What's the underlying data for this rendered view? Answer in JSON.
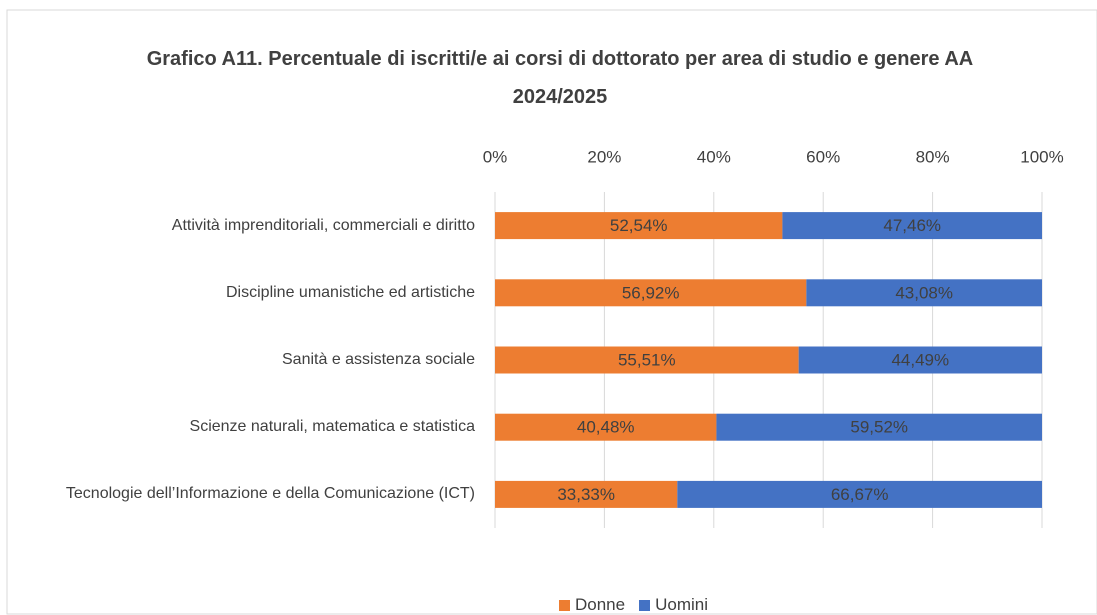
{
  "chart_data": {
    "type": "bar",
    "orientation": "horizontal",
    "stacked": true,
    "title": "Grafico A11. Percentuale di iscritti/e ai corsi di dottorato per area di studio e genere AA 2024/2025",
    "categories": [
      "Attività imprenditoriali, commerciali e diritto",
      "Discipline umanistiche ed artistiche",
      "Sanità e assistenza sociale",
      "Scienze naturali, matematica e statistica",
      "Tecnologie dell’Informazione e della Comunicazione (ICT)"
    ],
    "series": [
      {
        "name": "Donne",
        "color": "#ED7D31",
        "values": [
          52.54,
          56.92,
          55.51,
          40.48,
          33.33
        ],
        "value_labels": [
          "52,54%",
          "56,92%",
          "55,51%",
          "40,48%",
          "33,33%"
        ]
      },
      {
        "name": "Uomini",
        "color": "#4472C4",
        "values": [
          47.46,
          43.08,
          44.49,
          59.52,
          66.67
        ],
        "value_labels": [
          "47,46%",
          "43,08%",
          "44,49%",
          "59,52%",
          "66,67%"
        ]
      }
    ],
    "xlim": [
      0,
      100
    ],
    "xticks": [
      {
        "value": 0,
        "label": "0%"
      },
      {
        "value": 20,
        "label": "20%"
      },
      {
        "value": 40,
        "label": "40%"
      },
      {
        "value": 60,
        "label": "60%"
      },
      {
        "value": 80,
        "label": "80%"
      },
      {
        "value": 100,
        "label": "100%"
      }
    ],
    "grid": true,
    "legend": "bottom"
  }
}
